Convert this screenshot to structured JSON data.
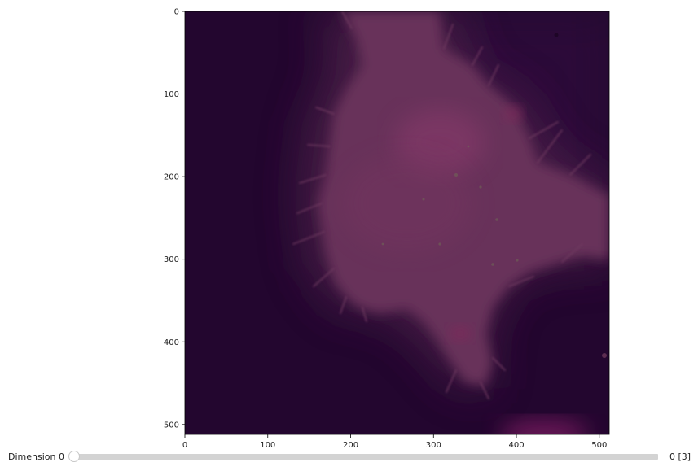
{
  "image_viewer": {
    "x_ticks": [
      "0",
      "100",
      "200",
      "300",
      "400",
      "500"
    ],
    "y_ticks": [
      "0",
      "100",
      "200",
      "300",
      "400",
      "500"
    ],
    "x_range": [
      0,
      512
    ],
    "y_range": [
      0,
      512
    ],
    "tick_values": [
      0,
      100,
      200,
      300,
      400,
      500
    ]
  },
  "image_colors": {
    "background_dark": "#23062f",
    "cell_body": "#6a3659",
    "cell_bright": "#8a3b6c",
    "spot": "#7a2b5a",
    "bottom_glow": "#a8287a"
  },
  "slider": {
    "label": "Dimension 0",
    "value_text": "0 [3]",
    "value": 0,
    "min": 0,
    "max": 3
  }
}
